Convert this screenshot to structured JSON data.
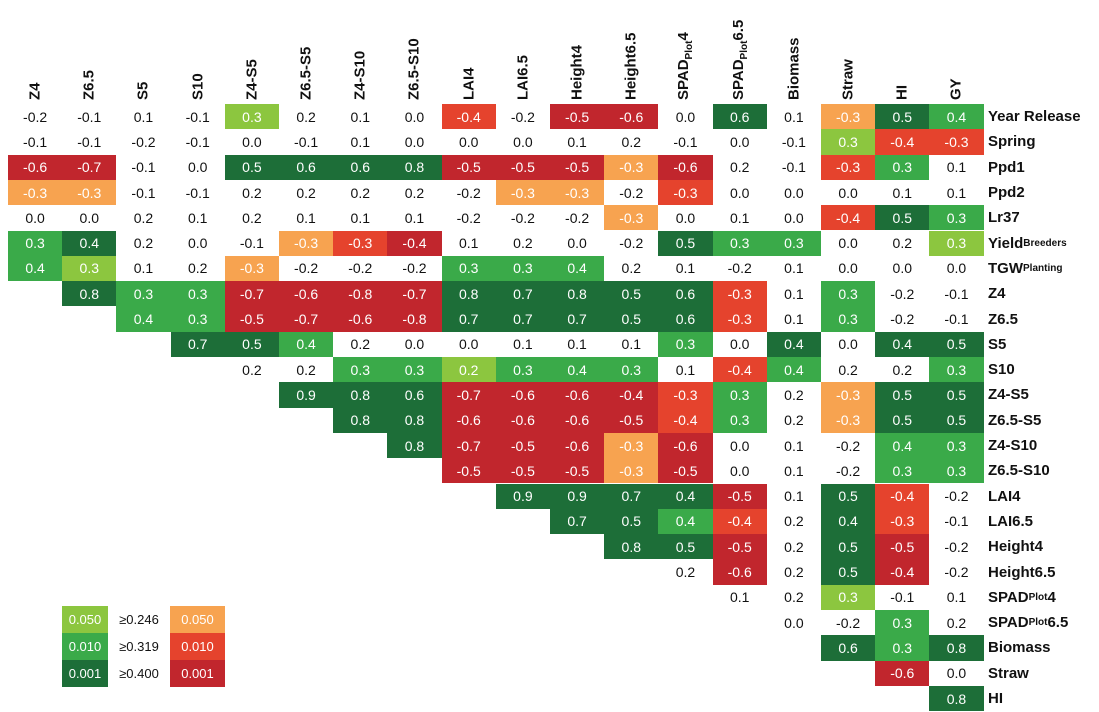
{
  "columns": [
    "Z4",
    "Z6.5",
    "S5",
    "S10",
    "Z4-S5",
    "Z6.5-S5",
    "Z4-S10",
    "Z6.5-S10",
    "LAI4",
    "LAI6.5",
    "Height4",
    "Height6.5",
    [
      {
        "text": "SPAD"
      },
      {
        "sub": "Plot"
      },
      {
        "text": "4"
      }
    ],
    [
      {
        "text": "SPAD"
      },
      {
        "sub": "Plot"
      },
      {
        "text": "6.5"
      }
    ],
    "Biomass",
    "Straw",
    "HI",
    "GY"
  ],
  "rows": [
    {
      "label": "Year Release",
      "values": [
        "-0.2",
        "-0.1",
        "0.1",
        "-0.1",
        "0.3",
        "0.2",
        "0.1",
        "0.0",
        "-0.4",
        "-0.2",
        "-0.5",
        "-0.6",
        "0.0",
        "0.6",
        "0.1",
        "-0.3",
        "0.5",
        "0.4"
      ],
      "colors": [
        null,
        null,
        null,
        null,
        "#8cc63f",
        null,
        null,
        null,
        "#e5432d",
        null,
        "#c1262d",
        "#c1262d",
        null,
        "#1d6e38",
        null,
        "#f7a350",
        "#1d6e38",
        "#3aaa49"
      ]
    },
    {
      "label": "Spring",
      "values": [
        "-0.1",
        "-0.1",
        "-0.2",
        "-0.1",
        "0.0",
        "-0.1",
        "0.1",
        "0.0",
        "0.0",
        "0.0",
        "0.1",
        "0.2",
        "-0.1",
        "0.0",
        "-0.1",
        "0.3",
        "-0.4",
        "-0.3"
      ],
      "colors": [
        null,
        null,
        null,
        null,
        null,
        null,
        null,
        null,
        null,
        null,
        null,
        null,
        null,
        null,
        null,
        "#8cc63f",
        "#e5432d",
        "#e5432d"
      ]
    },
    {
      "label": "Ppd1",
      "values": [
        "-0.6",
        "-0.7",
        "-0.1",
        "0.0",
        "0.5",
        "0.6",
        "0.6",
        "0.8",
        "-0.5",
        "-0.5",
        "-0.5",
        "-0.3",
        "-0.6",
        "0.2",
        "-0.1",
        "-0.3",
        "0.3",
        "0.1"
      ],
      "colors": [
        "#c1262d",
        "#c1262d",
        null,
        null,
        "#1d6e38",
        "#1d6e38",
        "#1d6e38",
        "#1d6e38",
        "#c1262d",
        "#c1262d",
        "#c1262d",
        "#f7a350",
        "#c1262d",
        null,
        null,
        "#e5432d",
        "#3aaa49",
        null
      ]
    },
    {
      "label": "Ppd2",
      "values": [
        "-0.3",
        "-0.3",
        "-0.1",
        "-0.1",
        "0.2",
        "0.2",
        "0.2",
        "0.2",
        "-0.2",
        "-0.3",
        "-0.3",
        "-0.2",
        "-0.3",
        "0.0",
        "0.0",
        "0.0",
        "0.1",
        "0.1"
      ],
      "colors": [
        "#f7a350",
        "#f7a350",
        null,
        null,
        null,
        null,
        null,
        null,
        null,
        "#f7a350",
        "#f7a350",
        null,
        "#e5432d",
        null,
        null,
        null,
        null,
        null
      ]
    },
    {
      "label": "Lr37",
      "values": [
        "0.0",
        "0.0",
        "0.2",
        "0.1",
        "0.2",
        "0.1",
        "0.1",
        "0.1",
        "-0.2",
        "-0.2",
        "-0.2",
        "-0.3",
        "0.0",
        "0.1",
        "0.0",
        "-0.4",
        "0.5",
        "0.3"
      ],
      "colors": [
        null,
        null,
        null,
        null,
        null,
        null,
        null,
        null,
        null,
        null,
        null,
        "#f7a350",
        null,
        null,
        null,
        "#e5432d",
        "#1d6e38",
        "#3aaa49"
      ]
    },
    {
      "label": [
        {
          "text": "Yield"
        },
        {
          "sub": "Breeders"
        }
      ],
      "values": [
        "0.3",
        "0.4",
        "0.2",
        "0.0",
        "-0.1",
        "-0.3",
        "-0.3",
        "-0.4",
        "0.1",
        "0.2",
        "0.0",
        "-0.2",
        "0.5",
        "0.3",
        "0.3",
        "0.0",
        "0.2",
        "0.3"
      ],
      "colors": [
        "#3aaa49",
        "#1d6e38",
        null,
        null,
        null,
        "#f7a350",
        "#e5432d",
        "#c1262d",
        null,
        null,
        null,
        null,
        "#1d6e38",
        "#3aaa49",
        "#3aaa49",
        null,
        null,
        "#8cc63f"
      ]
    },
    {
      "label": [
        {
          "text": "TGW"
        },
        {
          "sub": "Planting"
        }
      ],
      "values": [
        "0.4",
        "0.3",
        "0.1",
        "0.2",
        "-0.3",
        "-0.2",
        "-0.2",
        "-0.2",
        "0.3",
        "0.3",
        "0.4",
        "0.2",
        "0.1",
        "-0.2",
        "0.1",
        "0.0",
        "0.0",
        "0.0"
      ],
      "colors": [
        "#3aaa49",
        "#8cc63f",
        null,
        null,
        "#f7a350",
        null,
        null,
        null,
        "#3aaa49",
        "#3aaa49",
        "#3aaa49",
        null,
        null,
        null,
        null,
        null,
        null,
        null
      ]
    },
    {
      "label": "Z4",
      "values": [
        null,
        "0.8",
        "0.3",
        "0.3",
        "-0.7",
        "-0.6",
        "-0.8",
        "-0.7",
        "0.8",
        "0.7",
        "0.8",
        "0.5",
        "0.6",
        "-0.3",
        "0.1",
        "0.3",
        "-0.2",
        "-0.1"
      ],
      "colors": [
        null,
        "#1d6e38",
        "#3aaa49",
        "#3aaa49",
        "#c1262d",
        "#c1262d",
        "#c1262d",
        "#c1262d",
        "#1d6e38",
        "#1d6e38",
        "#1d6e38",
        "#1d6e38",
        "#1d6e38",
        "#e5432d",
        null,
        "#3aaa49",
        null,
        null
      ]
    },
    {
      "label": "Z6.5",
      "values": [
        null,
        null,
        "0.4",
        "0.3",
        "-0.5",
        "-0.7",
        "-0.6",
        "-0.8",
        "0.7",
        "0.7",
        "0.7",
        "0.5",
        "0.6",
        "-0.3",
        "0.1",
        "0.3",
        "-0.2",
        "-0.1"
      ],
      "colors": [
        null,
        null,
        "#3aaa49",
        "#3aaa49",
        "#c1262d",
        "#c1262d",
        "#c1262d",
        "#c1262d",
        "#1d6e38",
        "#1d6e38",
        "#1d6e38",
        "#1d6e38",
        "#1d6e38",
        "#e5432d",
        null,
        "#3aaa49",
        null,
        null
      ]
    },
    {
      "label": "S5",
      "values": [
        null,
        null,
        null,
        "0.7",
        "0.5",
        "0.4",
        "0.2",
        "0.0",
        "0.0",
        "0.1",
        "0.1",
        "0.1",
        "0.3",
        "0.0",
        "0.4",
        "0.0",
        "0.4",
        "0.5"
      ],
      "colors": [
        null,
        null,
        null,
        "#1d6e38",
        "#1d6e38",
        "#3aaa49",
        null,
        null,
        null,
        null,
        null,
        null,
        "#3aaa49",
        null,
        "#1d6e38",
        null,
        "#1d6e38",
        "#1d6e38"
      ]
    },
    {
      "label": "S10",
      "values": [
        null,
        null,
        null,
        null,
        "0.2",
        "0.2",
        "0.3",
        "0.3",
        "0.2",
        "0.3",
        "0.4",
        "0.3",
        "0.1",
        "-0.4",
        "0.4",
        "0.2",
        "0.2",
        "0.3"
      ],
      "colors": [
        null,
        null,
        null,
        null,
        null,
        null,
        "#3aaa49",
        "#3aaa49",
        "#8cc63f",
        "#3aaa49",
        "#3aaa49",
        "#3aaa49",
        null,
        "#e5432d",
        "#3aaa49",
        null,
        null,
        "#3aaa49"
      ]
    },
    {
      "label": "Z4-S5",
      "values": [
        null,
        null,
        null,
        null,
        null,
        "0.9",
        "0.8",
        "0.6",
        "-0.7",
        "-0.6",
        "-0.6",
        "-0.4",
        "-0.3",
        "0.3",
        "0.2",
        "-0.3",
        "0.5",
        "0.5"
      ],
      "colors": [
        null,
        null,
        null,
        null,
        null,
        "#1d6e38",
        "#1d6e38",
        "#1d6e38",
        "#c1262d",
        "#c1262d",
        "#c1262d",
        "#c1262d",
        "#e5432d",
        "#3aaa49",
        null,
        "#f7a350",
        "#1d6e38",
        "#1d6e38"
      ]
    },
    {
      "label": "Z6.5-S5",
      "values": [
        null,
        null,
        null,
        null,
        null,
        null,
        "0.8",
        "0.8",
        "-0.6",
        "-0.6",
        "-0.6",
        "-0.5",
        "-0.4",
        "0.3",
        "0.2",
        "-0.3",
        "0.5",
        "0.5"
      ],
      "colors": [
        null,
        null,
        null,
        null,
        null,
        null,
        "#1d6e38",
        "#1d6e38",
        "#c1262d",
        "#c1262d",
        "#c1262d",
        "#c1262d",
        "#e5432d",
        "#3aaa49",
        null,
        "#f7a350",
        "#1d6e38",
        "#1d6e38"
      ]
    },
    {
      "label": "Z4-S10",
      "values": [
        null,
        null,
        null,
        null,
        null,
        null,
        null,
        "0.8",
        "-0.7",
        "-0.5",
        "-0.6",
        "-0.3",
        "-0.6",
        "0.0",
        "0.1",
        "-0.2",
        "0.4",
        "0.3"
      ],
      "colors": [
        null,
        null,
        null,
        null,
        null,
        null,
        null,
        "#1d6e38",
        "#c1262d",
        "#c1262d",
        "#c1262d",
        "#f7a350",
        "#c1262d",
        null,
        null,
        null,
        "#3aaa49",
        "#3aaa49"
      ]
    },
    {
      "label": "Z6.5-S10",
      "values": [
        null,
        null,
        null,
        null,
        null,
        null,
        null,
        null,
        "-0.5",
        "-0.5",
        "-0.5",
        "-0.3",
        "-0.5",
        "0.0",
        "0.1",
        "-0.2",
        "0.3",
        "0.3"
      ],
      "colors": [
        null,
        null,
        null,
        null,
        null,
        null,
        null,
        null,
        "#c1262d",
        "#c1262d",
        "#c1262d",
        "#f7a350",
        "#c1262d",
        null,
        null,
        null,
        "#3aaa49",
        "#3aaa49"
      ]
    },
    {
      "label": "LAI4",
      "values": [
        null,
        null,
        null,
        null,
        null,
        null,
        null,
        null,
        null,
        "0.9",
        "0.9",
        "0.7",
        "0.4",
        "-0.5",
        "0.1",
        "0.5",
        "-0.4",
        "-0.2"
      ],
      "colors": [
        null,
        null,
        null,
        null,
        null,
        null,
        null,
        null,
        null,
        "#1d6e38",
        "#1d6e38",
        "#1d6e38",
        "#1d6e38",
        "#c1262d",
        null,
        "#1d6e38",
        "#e5432d",
        null
      ]
    },
    {
      "label": "LAI6.5",
      "values": [
        null,
        null,
        null,
        null,
        null,
        null,
        null,
        null,
        null,
        null,
        "0.7",
        "0.5",
        "0.4",
        "-0.4",
        "0.2",
        "0.4",
        "-0.3",
        "-0.1"
      ],
      "colors": [
        null,
        null,
        null,
        null,
        null,
        null,
        null,
        null,
        null,
        null,
        "#1d6e38",
        "#1d6e38",
        "#3aaa49",
        "#e5432d",
        null,
        "#1d6e38",
        "#e5432d",
        null
      ]
    },
    {
      "label": "Height4",
      "values": [
        null,
        null,
        null,
        null,
        null,
        null,
        null,
        null,
        null,
        null,
        null,
        "0.8",
        "0.5",
        "-0.5",
        "0.2",
        "0.5",
        "-0.5",
        "-0.2"
      ],
      "colors": [
        null,
        null,
        null,
        null,
        null,
        null,
        null,
        null,
        null,
        null,
        null,
        "#1d6e38",
        "#1d6e38",
        "#c1262d",
        null,
        "#1d6e38",
        "#c1262d",
        null
      ]
    },
    {
      "label": "Height6.5",
      "values": [
        null,
        null,
        null,
        null,
        null,
        null,
        null,
        null,
        null,
        null,
        null,
        null,
        "0.2",
        "-0.6",
        "0.2",
        "0.5",
        "-0.4",
        "-0.2"
      ],
      "colors": [
        null,
        null,
        null,
        null,
        null,
        null,
        null,
        null,
        null,
        null,
        null,
        null,
        null,
        "#c1262d",
        null,
        "#1d6e38",
        "#c1262d",
        null
      ]
    },
    {
      "label": [
        {
          "text": "SPAD"
        },
        {
          "sub": "Plot"
        },
        {
          "text": "4"
        }
      ],
      "values": [
        null,
        null,
        null,
        null,
        null,
        null,
        null,
        null,
        null,
        null,
        null,
        null,
        null,
        "0.1",
        "0.2",
        "0.3",
        "-0.1",
        "0.1"
      ],
      "colors": [
        null,
        null,
        null,
        null,
        null,
        null,
        null,
        null,
        null,
        null,
        null,
        null,
        null,
        null,
        null,
        "#8cc63f",
        null,
        null
      ]
    },
    {
      "label": [
        {
          "text": "SPAD"
        },
        {
          "sub": "Plot"
        },
        {
          "text": "6.5"
        }
      ],
      "values": [
        null,
        null,
        null,
        null,
        null,
        null,
        null,
        null,
        null,
        null,
        null,
        null,
        null,
        null,
        "0.0",
        "-0.2",
        "0.3",
        "0.2"
      ],
      "colors": [
        null,
        null,
        null,
        null,
        null,
        null,
        null,
        null,
        null,
        null,
        null,
        null,
        null,
        null,
        null,
        null,
        "#3aaa49",
        null
      ]
    },
    {
      "label": "Biomass",
      "values": [
        null,
        null,
        null,
        null,
        null,
        null,
        null,
        null,
        null,
        null,
        null,
        null,
        null,
        null,
        null,
        "0.6",
        "0.3",
        "0.8"
      ],
      "colors": [
        null,
        null,
        null,
        null,
        null,
        null,
        null,
        null,
        null,
        null,
        null,
        null,
        null,
        null,
        null,
        "#1d6e38",
        "#3aaa49",
        "#1d6e38"
      ]
    },
    {
      "label": "Straw",
      "values": [
        null,
        null,
        null,
        null,
        null,
        null,
        null,
        null,
        null,
        null,
        null,
        null,
        null,
        null,
        null,
        null,
        "-0.6",
        "0.0"
      ],
      "colors": [
        null,
        null,
        null,
        null,
        null,
        null,
        null,
        null,
        null,
        null,
        null,
        null,
        null,
        null,
        null,
        null,
        "#c1262d",
        null
      ]
    },
    {
      "label": "HI",
      "values": [
        null,
        null,
        null,
        null,
        null,
        null,
        null,
        null,
        null,
        null,
        null,
        null,
        null,
        null,
        null,
        null,
        null,
        "0.8"
      ],
      "colors": [
        null,
        null,
        null,
        null,
        null,
        null,
        null,
        null,
        null,
        null,
        null,
        null,
        null,
        null,
        null,
        null,
        null,
        "#1d6e38"
      ]
    }
  ],
  "legend": {
    "rows": [
      {
        "left": "0.050",
        "left_color": "#8cc63f",
        "threshold": "≥0.246",
        "right": "0.050",
        "right_color": "#f7a350"
      },
      {
        "left": "0.010",
        "left_color": "#3aaa49",
        "threshold": "≥0.319",
        "right": "0.010",
        "right_color": "#e5432d"
      },
      {
        "left": "0.001",
        "left_color": "#1d6e38",
        "threshold": "≥0.400",
        "right": "0.001",
        "right_color": "#c1262d"
      }
    ]
  }
}
